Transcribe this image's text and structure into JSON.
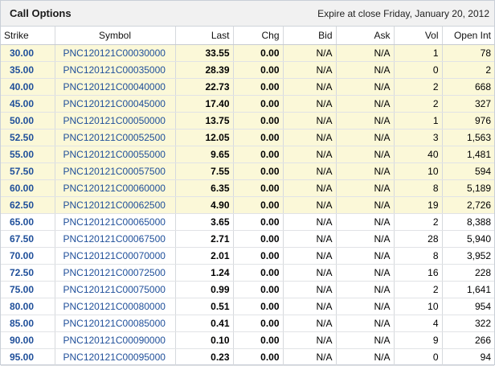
{
  "header": {
    "title": "Call Options",
    "expire": "Expire at close Friday, January 20, 2012"
  },
  "columns": [
    "Strike",
    "Symbol",
    "Last",
    "Chg",
    "Bid",
    "Ask",
    "Vol",
    "Open Int"
  ],
  "rows": [
    {
      "strike": "30.00",
      "symbol": "PNC120121C00030000",
      "last": "33.55",
      "chg": "0.00",
      "bid": "N/A",
      "ask": "N/A",
      "vol": "1",
      "oi": "78",
      "itm": true
    },
    {
      "strike": "35.00",
      "symbol": "PNC120121C00035000",
      "last": "28.39",
      "chg": "0.00",
      "bid": "N/A",
      "ask": "N/A",
      "vol": "0",
      "oi": "2",
      "itm": true
    },
    {
      "strike": "40.00",
      "symbol": "PNC120121C00040000",
      "last": "22.73",
      "chg": "0.00",
      "bid": "N/A",
      "ask": "N/A",
      "vol": "2",
      "oi": "668",
      "itm": true
    },
    {
      "strike": "45.00",
      "symbol": "PNC120121C00045000",
      "last": "17.40",
      "chg": "0.00",
      "bid": "N/A",
      "ask": "N/A",
      "vol": "2",
      "oi": "327",
      "itm": true
    },
    {
      "strike": "50.00",
      "symbol": "PNC120121C00050000",
      "last": "13.75",
      "chg": "0.00",
      "bid": "N/A",
      "ask": "N/A",
      "vol": "1",
      "oi": "976",
      "itm": true
    },
    {
      "strike": "52.50",
      "symbol": "PNC120121C00052500",
      "last": "12.05",
      "chg": "0.00",
      "bid": "N/A",
      "ask": "N/A",
      "vol": "3",
      "oi": "1,563",
      "itm": true
    },
    {
      "strike": "55.00",
      "symbol": "PNC120121C00055000",
      "last": "9.65",
      "chg": "0.00",
      "bid": "N/A",
      "ask": "N/A",
      "vol": "40",
      "oi": "1,481",
      "itm": true
    },
    {
      "strike": "57.50",
      "symbol": "PNC120121C00057500",
      "last": "7.55",
      "chg": "0.00",
      "bid": "N/A",
      "ask": "N/A",
      "vol": "10",
      "oi": "594",
      "itm": true
    },
    {
      "strike": "60.00",
      "symbol": "PNC120121C00060000",
      "last": "6.35",
      "chg": "0.00",
      "bid": "N/A",
      "ask": "N/A",
      "vol": "8",
      "oi": "5,189",
      "itm": true
    },
    {
      "strike": "62.50",
      "symbol": "PNC120121C00062500",
      "last": "4.90",
      "chg": "0.00",
      "bid": "N/A",
      "ask": "N/A",
      "vol": "19",
      "oi": "2,726",
      "itm": true
    },
    {
      "strike": "65.00",
      "symbol": "PNC120121C00065000",
      "last": "3.65",
      "chg": "0.00",
      "bid": "N/A",
      "ask": "N/A",
      "vol": "2",
      "oi": "8,388",
      "itm": false
    },
    {
      "strike": "67.50",
      "symbol": "PNC120121C00067500",
      "last": "2.71",
      "chg": "0.00",
      "bid": "N/A",
      "ask": "N/A",
      "vol": "28",
      "oi": "5,940",
      "itm": false
    },
    {
      "strike": "70.00",
      "symbol": "PNC120121C00070000",
      "last": "2.01",
      "chg": "0.00",
      "bid": "N/A",
      "ask": "N/A",
      "vol": "8",
      "oi": "3,952",
      "itm": false
    },
    {
      "strike": "72.50",
      "symbol": "PNC120121C00072500",
      "last": "1.24",
      "chg": "0.00",
      "bid": "N/A",
      "ask": "N/A",
      "vol": "16",
      "oi": "228",
      "itm": false
    },
    {
      "strike": "75.00",
      "symbol": "PNC120121C00075000",
      "last": "0.99",
      "chg": "0.00",
      "bid": "N/A",
      "ask": "N/A",
      "vol": "2",
      "oi": "1,641",
      "itm": false
    },
    {
      "strike": "80.00",
      "symbol": "PNC120121C00080000",
      "last": "0.51",
      "chg": "0.00",
      "bid": "N/A",
      "ask": "N/A",
      "vol": "10",
      "oi": "954",
      "itm": false
    },
    {
      "strike": "85.00",
      "symbol": "PNC120121C00085000",
      "last": "0.41",
      "chg": "0.00",
      "bid": "N/A",
      "ask": "N/A",
      "vol": "4",
      "oi": "322",
      "itm": false
    },
    {
      "strike": "90.00",
      "symbol": "PNC120121C00090000",
      "last": "0.10",
      "chg": "0.00",
      "bid": "N/A",
      "ask": "N/A",
      "vol": "9",
      "oi": "266",
      "itm": false
    },
    {
      "strike": "95.00",
      "symbol": "PNC120121C00095000",
      "last": "0.23",
      "chg": "0.00",
      "bid": "N/A",
      "ask": "N/A",
      "vol": "0",
      "oi": "94",
      "itm": false
    }
  ],
  "colors": {
    "in_the_money_row": "#fbf8d8",
    "link": "#1f4f9a",
    "header_bg": "#f1f1f1"
  }
}
